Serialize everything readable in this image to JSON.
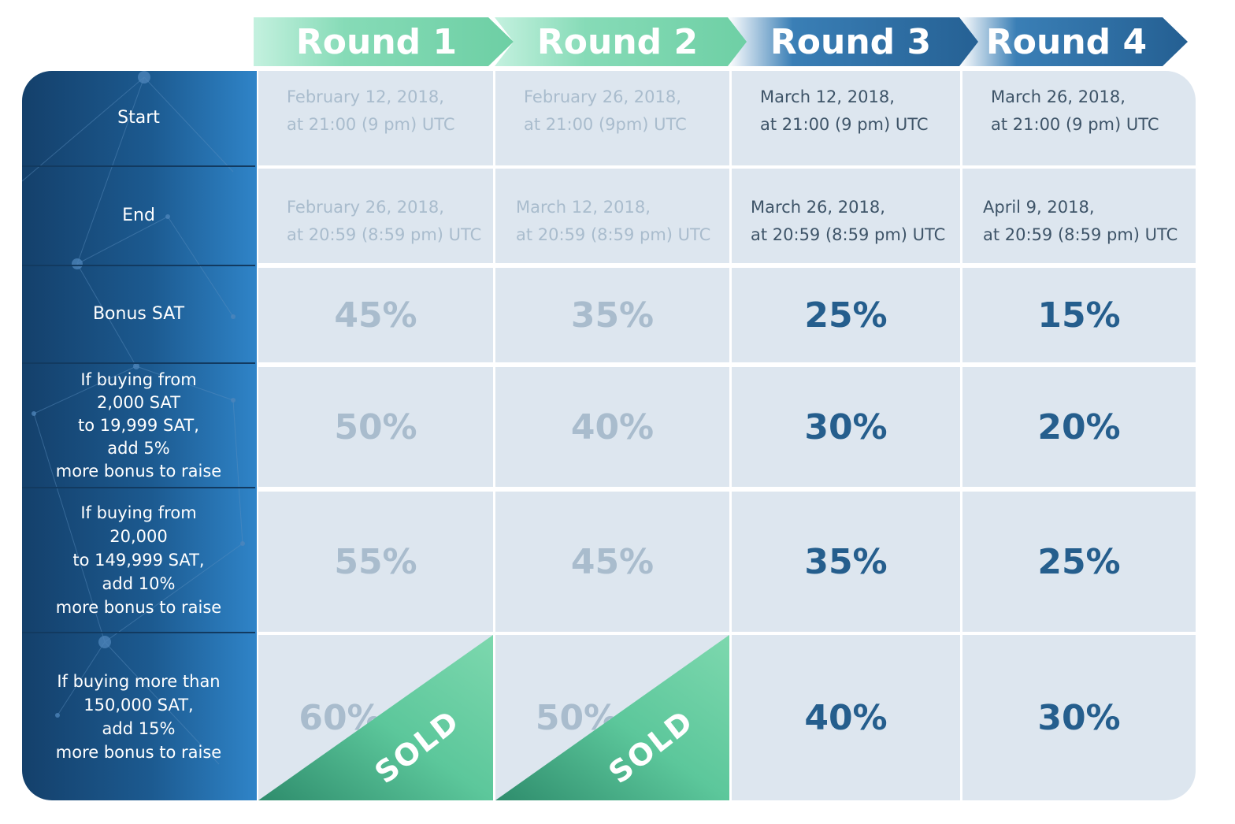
{
  "rounds": [
    {
      "label": "Round 1",
      "color_start": "#a9ead0",
      "color_end": "#7bd3ad"
    },
    {
      "label": "Round 2",
      "color_start": "#a9ead0",
      "color_end": "#7bd3ad"
    },
    {
      "label": "Round 3",
      "color_start": "#2c6fa6",
      "color_end": "#245f92"
    },
    {
      "label": "Round 4",
      "color_start": "#2c6fa6",
      "color_end": "#245f92"
    }
  ],
  "row_labels": {
    "start": "Start",
    "end": "End",
    "bonus": "Bonus SAT",
    "tier1": "If buying from\n2,000 SAT\nto 19,999 SAT,\nadd 5%\nmore bonus to raise",
    "tier2": "If buying from\n20,000\nto 149,999 SAT,\nadd 10%\nmore bonus to raise",
    "tier3": "If buying more than\n150,000  SAT,\nadd 15%\nmore bonus to raise"
  },
  "start": [
    "February 12, 2018,\nat 21:00 (9 pm) UTC",
    "February 26, 2018,\nat 21:00 (9pm) UTC",
    "March 12, 2018,\nat 21:00 (9 pm) UTC",
    "March 26, 2018,\nat 21:00 (9 pm) UTC"
  ],
  "end": [
    "February 26, 2018,\nat 20:59 (8:59 pm) UTC",
    "March 12, 2018,\nat 20:59 (8:59 pm) UTC",
    "March 26, 2018,\nat 20:59 (8:59 pm) UTC",
    "April 9, 2018,\nat 20:59 (8:59 pm) UTC"
  ],
  "bonus": [
    "45%",
    "35%",
    "25%",
    "15%"
  ],
  "tier1": [
    "50%",
    "40%",
    "30%",
    "20%"
  ],
  "tier2": [
    "55%",
    "45%",
    "35%",
    "25%"
  ],
  "tier3": [
    "60%",
    "50%",
    "40%",
    "30%"
  ],
  "sold_label": "SOLD",
  "colors": {
    "label_col": "#1c5a90",
    "cell_bg": "#dde6ef",
    "faded_text": "#a9bccd",
    "active_pct": "#255e8d",
    "sold_green": "#5cc79b"
  }
}
